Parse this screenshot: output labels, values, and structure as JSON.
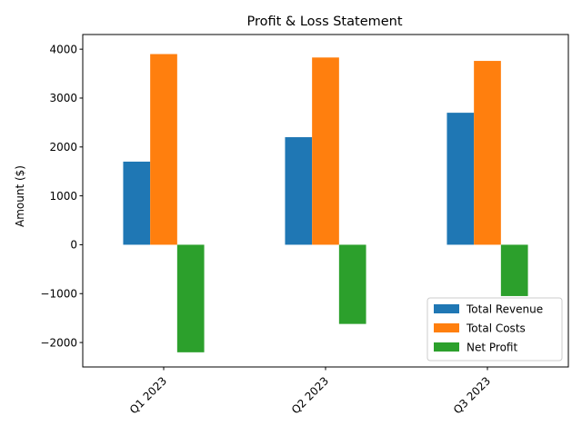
{
  "chart_data": {
    "type": "bar",
    "title": "Profit & Loss Statement",
    "xlabel": "",
    "ylabel": "Amount ($)",
    "categories": [
      "Q1 2023",
      "Q2 2023",
      "Q3 2023"
    ],
    "series": [
      {
        "name": "Total Revenue",
        "color": "#1f77b4",
        "values": [
          1700,
          2200,
          2700
        ]
      },
      {
        "name": "Total Costs",
        "color": "#ff7f0e",
        "values": [
          3900,
          3830,
          3760
        ]
      },
      {
        "name": "Net Profit",
        "color": "#2ca02c",
        "values": [
          -2200,
          -1620,
          -1050
        ]
      }
    ],
    "ylim": [
      -2500,
      4300
    ],
    "yticks": [
      -2000,
      -1000,
      0,
      1000,
      2000,
      3000,
      4000
    ],
    "ytick_labels": [
      "−2000",
      "−1000",
      "0",
      "1000",
      "2000",
      "3000",
      "4000"
    ],
    "legend_position": "lower-right",
    "grid": false
  }
}
